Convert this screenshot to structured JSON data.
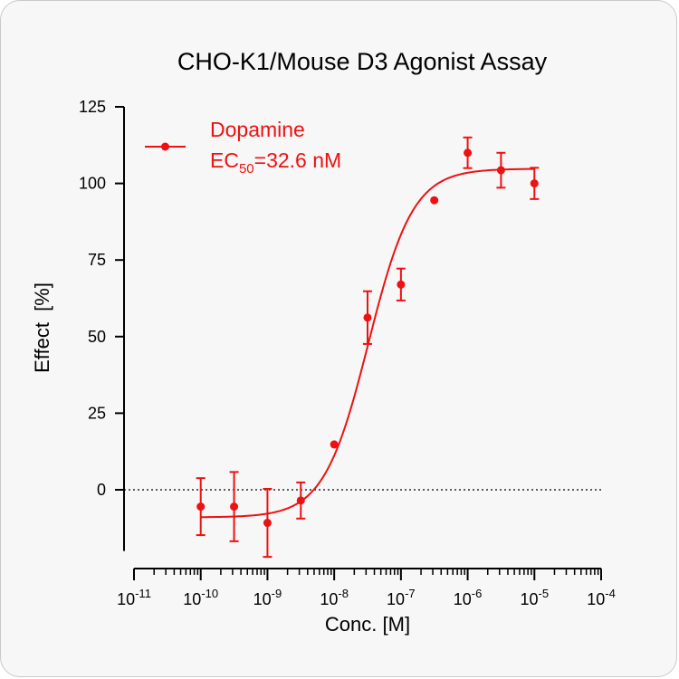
{
  "chart_data": {
    "type": "scatter",
    "title": "CHO-K1/Mouse D3 Agonist Assay",
    "xlabel": "Conc. [M]",
    "ylabel": "Effect  [%]",
    "x_scale": "log10",
    "xlim": [
      1e-11,
      0.0001
    ],
    "ylim": [
      -20,
      125
    ],
    "x_ticks": [
      {
        "base": "10",
        "exp": "-11"
      },
      {
        "base": "10",
        "exp": "-10"
      },
      {
        "base": "10",
        "exp": "-9"
      },
      {
        "base": "10",
        "exp": "-8"
      },
      {
        "base": "10",
        "exp": "-7"
      },
      {
        "base": "10",
        "exp": "-6"
      },
      {
        "base": "10",
        "exp": "-5"
      },
      {
        "base": "10",
        "exp": "-4"
      }
    ],
    "y_ticks": [
      "125",
      "100",
      "75",
      "50",
      "25",
      "0"
    ],
    "reference_line": {
      "y": 0,
      "style": "dotted"
    },
    "color": "#ee1111",
    "series": [
      {
        "name": "Dopamine",
        "points": [
          {
            "x": 1e-10,
            "y": -5.5,
            "err": 9.3
          },
          {
            "x": 3.16e-10,
            "y": -5.5,
            "err": 11.3
          },
          {
            "x": 1e-09,
            "y": -10.8,
            "err": 11.1
          },
          {
            "x": 3.16e-09,
            "y": -3.5,
            "err": 5.9
          },
          {
            "x": 1e-08,
            "y": 14.8,
            "err": 0
          },
          {
            "x": 3.16e-08,
            "y": 56.2,
            "err": 8.6
          },
          {
            "x": 1e-07,
            "y": 67.0,
            "err": 5.2
          },
          {
            "x": 3.16e-07,
            "y": 94.5,
            "err": 0
          },
          {
            "x": 1e-06,
            "y": 110.0,
            "err": 5.0
          },
          {
            "x": 3.16e-06,
            "y": 104.3,
            "err": 5.7
          },
          {
            "x": 1e-05,
            "y": 100.0,
            "err": 5.1
          }
        ],
        "fit": {
          "model": "four-parameter logistic",
          "bottom": -9,
          "top": 104.8,
          "ec50": 3.26e-08,
          "hill": 1.3
        }
      }
    ],
    "legend": {
      "position": "top-left",
      "name": "Dopamine",
      "ec_prefix": "EC",
      "ec_sub": "50",
      "ec_value": "=32.6 nM"
    },
    "grid": false
  }
}
